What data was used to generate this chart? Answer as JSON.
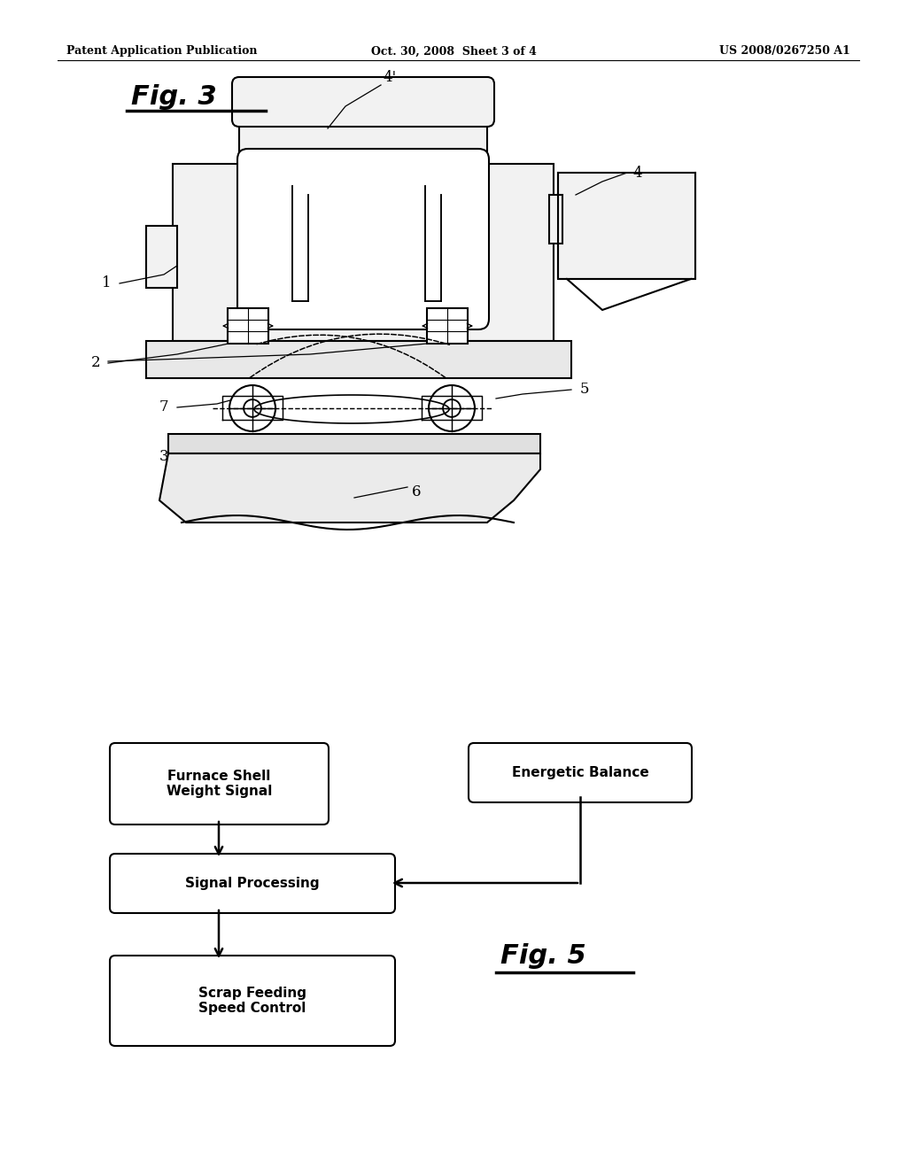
{
  "header_left": "Patent Application Publication",
  "header_center": "Oct. 30, 2008  Sheet 3 of 4",
  "header_right": "US 2008/0267250 A1",
  "fig3_label": "Fig. 3",
  "fig5_label": "Fig. 5",
  "background_color": "#ffffff",
  "line_color": "#000000"
}
